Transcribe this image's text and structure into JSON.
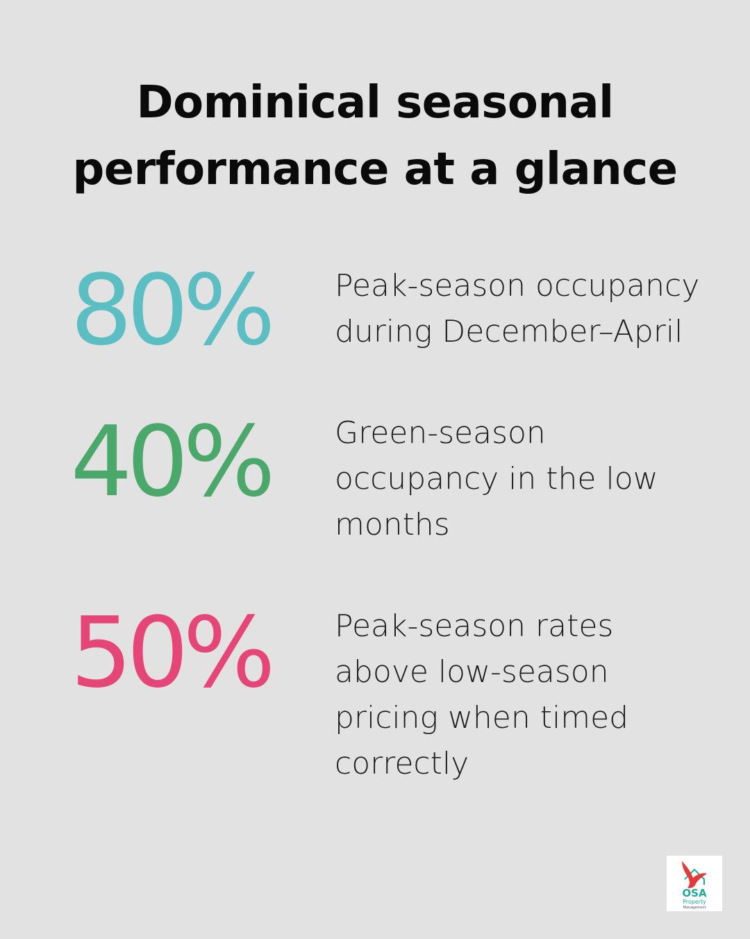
{
  "title": "Dominical seasonal performance at a glance",
  "stats": [
    {
      "value": "80%",
      "color": "#5bbec3",
      "description": "Peak-season occupancy during December–April"
    },
    {
      "value": "40%",
      "color": "#4aa86b",
      "description": "Green-season occupancy in the low months"
    },
    {
      "value": "50%",
      "color": "#e64578",
      "description": "Peak-season rates above low-season pricing when timed correctly"
    }
  ],
  "logo": {
    "name": "OSA",
    "line1": "Property",
    "line2": "Management"
  },
  "colors": {
    "background": "#e1e2e1",
    "title": "#0a0a0a",
    "body_text": "#1e1e1e",
    "logo_teal": "#1ea99b",
    "logo_red": "#e33a3a"
  }
}
